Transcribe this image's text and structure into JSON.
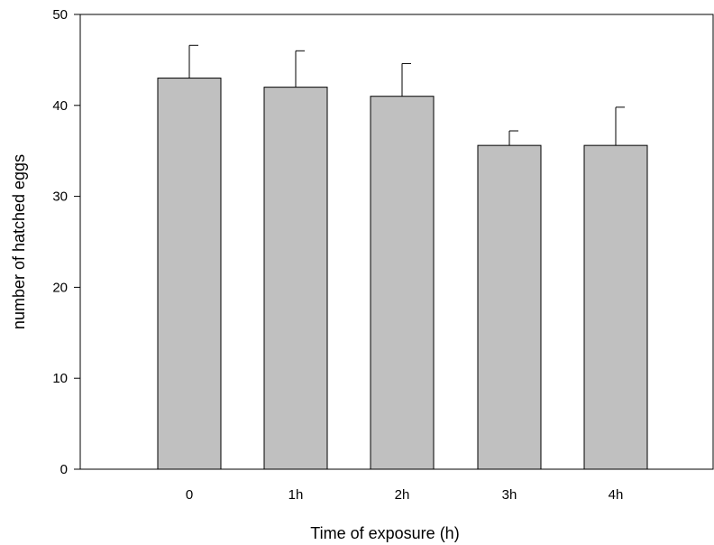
{
  "chart_data": {
    "type": "bar",
    "title": "",
    "xlabel": "Time of exposure (h)",
    "ylabel": "number of hatched eggs",
    "categories": [
      "0",
      "1h",
      "2h",
      "3h",
      "4h"
    ],
    "values": [
      43.0,
      42.0,
      41.0,
      35.6,
      35.6
    ],
    "errors": [
      3.6,
      4.0,
      3.6,
      1.6,
      4.2
    ],
    "ylim": [
      0,
      50
    ],
    "yticks": [
      0,
      10,
      20,
      30,
      40,
      50
    ],
    "grid": false,
    "legend": "none",
    "bar_color": "#c0c0c0",
    "edge_color": "#000000"
  }
}
